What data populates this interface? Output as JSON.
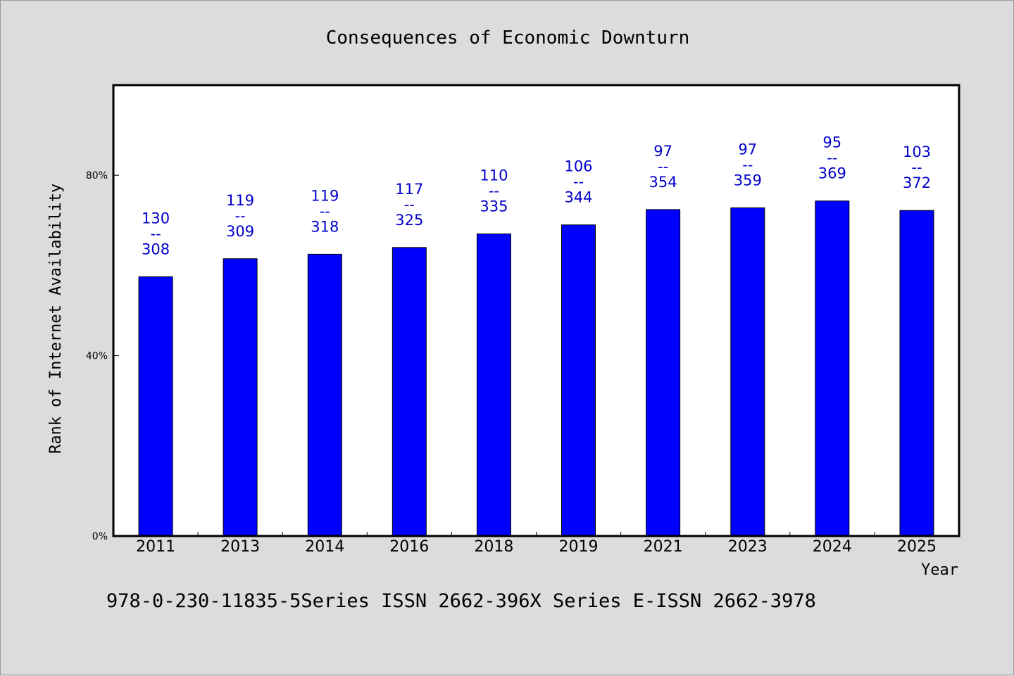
{
  "chart_data": {
    "type": "bar",
    "title": "Consequences of Economic Downturn",
    "xlabel": "Year",
    "ylabel": "Rank of Internet Availability",
    "categories": [
      "2011",
      "2013",
      "2014",
      "2016",
      "2018",
      "2019",
      "2021",
      "2023",
      "2024",
      "2025"
    ],
    "series": [
      {
        "values": [
          57.5,
          61.5,
          62.5,
          64.0,
          67.0,
          69.0,
          72.4,
          72.8,
          74.3,
          72.2
        ],
        "color": "#0000ff"
      }
    ],
    "annotations": [
      {
        "top": "130",
        "sep": "--",
        "bottom": "308"
      },
      {
        "top": "119",
        "sep": "--",
        "bottom": "309"
      },
      {
        "top": "119",
        "sep": "--",
        "bottom": "318"
      },
      {
        "top": "117",
        "sep": "--",
        "bottom": "325"
      },
      {
        "top": "110",
        "sep": "--",
        "bottom": "335"
      },
      {
        "top": "106",
        "sep": "--",
        "bottom": "344"
      },
      {
        "top": "97",
        "sep": "--",
        "bottom": "354"
      },
      {
        "top": "97",
        "sep": "--",
        "bottom": "359"
      },
      {
        "top": "95",
        "sep": "--",
        "bottom": "369"
      },
      {
        "top": "103",
        "sep": "--",
        "bottom": "372"
      }
    ],
    "ylim": [
      0,
      100
    ],
    "yticks": [
      {
        "value": 0,
        "label": "0%"
      },
      {
        "value": 40,
        "label": "40%"
      },
      {
        "value": 80,
        "label": "80%"
      }
    ],
    "grid": false,
    "label_color": "#0000cc"
  },
  "footer": "978-0-230-11835-5Series ISSN 2662-396X Series E-ISSN 2662-3978"
}
